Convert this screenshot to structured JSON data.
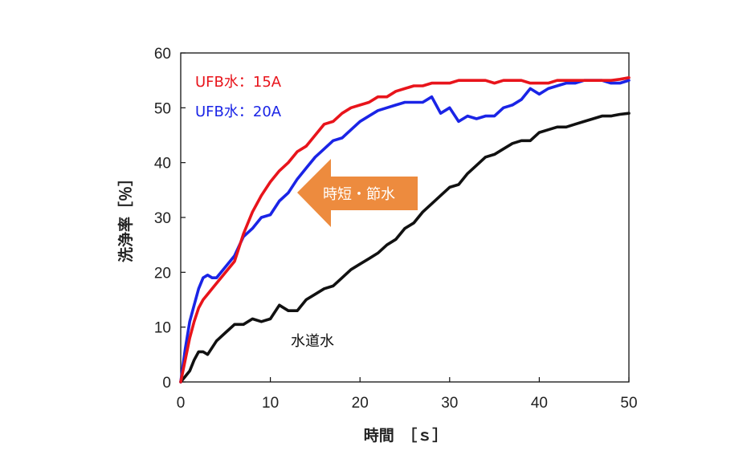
{
  "chart_data": {
    "type": "line",
    "title": "",
    "xlabel": "時間　［ｓ］",
    "ylabel": "洗浄率［％］",
    "xlim": [
      0,
      50
    ],
    "ylim": [
      0,
      60
    ],
    "xticks": [
      0,
      10,
      20,
      30,
      40,
      50
    ],
    "yticks": [
      0,
      10,
      20,
      30,
      40,
      50,
      60
    ],
    "grid": false,
    "series": [
      {
        "name": "UFB水：15A",
        "color": "#e8141b",
        "x": [
          0,
          0.5,
          1,
          1.5,
          2,
          2.5,
          3,
          3.5,
          4,
          5,
          6,
          7,
          8,
          9,
          10,
          11,
          12,
          13,
          14,
          15,
          16,
          17,
          18,
          19,
          20,
          21,
          22,
          23,
          24,
          25,
          26,
          27,
          28,
          29,
          30,
          31,
          32,
          33,
          34,
          35,
          36,
          37,
          38,
          39,
          40,
          41,
          42,
          43,
          44,
          45,
          46,
          47,
          48,
          49,
          50
        ],
        "y": [
          0,
          4,
          8,
          11,
          13.5,
          15,
          16,
          17,
          18,
          20,
          22,
          27,
          31,
          34,
          36.5,
          38.5,
          40,
          42,
          43,
          45,
          47,
          47.5,
          49,
          50,
          50.5,
          51,
          52,
          52,
          53,
          53.5,
          54,
          54,
          54.5,
          54.5,
          54.5,
          55,
          55,
          55,
          55,
          54.5,
          55,
          55,
          55,
          54.5,
          54.5,
          54.5,
          55,
          55,
          55,
          55,
          55,
          55,
          55,
          55.2,
          55.5
        ]
      },
      {
        "name": "UFB水：20A",
        "color": "#1a24e6",
        "x": [
          0,
          0.5,
          1,
          1.5,
          2,
          2.5,
          3,
          3.5,
          4,
          5,
          6,
          7,
          8,
          9,
          10,
          11,
          12,
          13,
          14,
          15,
          16,
          17,
          18,
          19,
          20,
          21,
          22,
          23,
          24,
          25,
          26,
          27,
          28,
          29,
          30,
          31,
          32,
          33,
          34,
          35,
          36,
          37,
          38,
          39,
          40,
          41,
          42,
          43,
          44,
          45,
          46,
          47,
          48,
          49,
          50
        ],
        "y": [
          0,
          6,
          11,
          14,
          17,
          19,
          19.5,
          19,
          19,
          21,
          23,
          26.5,
          28,
          30,
          30.5,
          33,
          34.5,
          37,
          39,
          41,
          42.5,
          44,
          44.5,
          46,
          47.5,
          48.5,
          49.5,
          50,
          50.5,
          51,
          51,
          51,
          52,
          49,
          50,
          47.5,
          48.5,
          48,
          48.5,
          48.5,
          50,
          50.5,
          51.5,
          53.5,
          52.5,
          53.5,
          54,
          54.5,
          54.5,
          55,
          55,
          55,
          54.5,
          54.5,
          55
        ]
      },
      {
        "name": "水道水",
        "color": "#111111",
        "x": [
          0,
          0.5,
          1,
          1.5,
          2,
          2.5,
          3,
          4,
          5,
          6,
          7,
          8,
          9,
          10,
          11,
          12,
          13,
          14,
          15,
          16,
          17,
          18,
          19,
          20,
          21,
          22,
          23,
          24,
          25,
          26,
          27,
          28,
          29,
          30,
          31,
          32,
          33,
          34,
          35,
          36,
          37,
          38,
          39,
          40,
          41,
          42,
          43,
          44,
          45,
          46,
          47,
          48,
          49,
          50
        ],
        "y": [
          0,
          1,
          2,
          4,
          5.5,
          5.5,
          5,
          7.5,
          9,
          10.5,
          10.5,
          11.5,
          11,
          11.5,
          14,
          13,
          13,
          15,
          16,
          17,
          17.5,
          19,
          20.5,
          21.5,
          22.5,
          23.5,
          25,
          26,
          28,
          29,
          31,
          32.5,
          34,
          35.5,
          36,
          38,
          39.5,
          41,
          41.5,
          42.5,
          43.5,
          44,
          44,
          45.5,
          46,
          46.5,
          46.5,
          47,
          47.5,
          48,
          48.5,
          48.5,
          48.8,
          49
        ]
      }
    ],
    "annotations": {
      "arrow_label": "時短・節水",
      "tap_water_label": "水道水"
    }
  },
  "colors": {
    "arrow": "#ed8b3e",
    "arrow_text": "#ffffff",
    "axis": "#111111"
  }
}
